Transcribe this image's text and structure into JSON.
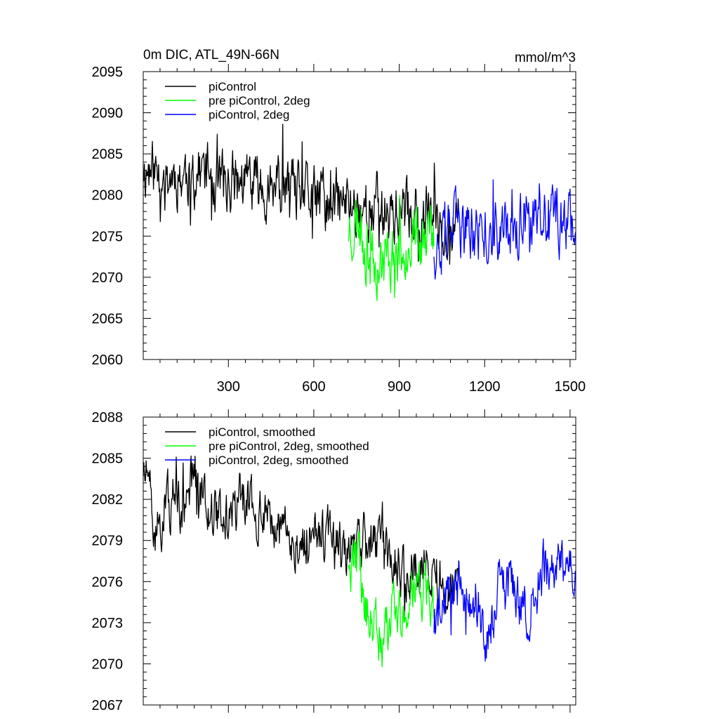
{
  "chart_data": [
    {
      "type": "line",
      "title": "0m DIC, ATL_49N-66N",
      "units": "mmol/m^3",
      "xlim": [
        1,
        1520
      ],
      "ylim": [
        2060,
        2095
      ],
      "xticks": [
        300,
        600,
        900,
        1200,
        1500
      ],
      "yticks": [
        2060,
        2065,
        2070,
        2075,
        2080,
        2085,
        2090,
        2095
      ],
      "legend_placement": "top-left",
      "series": [
        {
          "name": "piControl",
          "color": "#000000",
          "x_range": [
            1,
            1110
          ],
          "anchors": [
            [
              1,
              2083.5
            ],
            [
              60,
              2082.5
            ],
            [
              150,
              2082.5
            ],
            [
              200,
              2083
            ],
            [
              300,
              2081.5
            ],
            [
              400,
              2081.5
            ],
            [
              500,
              2080.5
            ],
            [
              600,
              2079.5
            ],
            [
              700,
              2079
            ],
            [
              800,
              2078.5
            ],
            [
              900,
              2078
            ],
            [
              1000,
              2077.5
            ],
            [
              1110,
              2076.5
            ]
          ],
          "noise_amplitude": 3.0,
          "seed": 11
        },
        {
          "name": "pre piControl, 2deg",
          "color": "#00ff00",
          "x_range": [
            722,
            1022
          ],
          "anchors": [
            [
              722,
              2076
            ],
            [
              760,
              2077
            ],
            [
              790,
              2073
            ],
            [
              840,
              2072
            ],
            [
              900,
              2073.5
            ],
            [
              960,
              2075.5
            ],
            [
              1022,
              2074.5
            ]
          ],
          "noise_amplitude": 3.2,
          "seed": 23
        },
        {
          "name": "piControl, 2deg",
          "color": "#0000ff",
          "x_range": [
            1022,
            1520
          ],
          "anchors": [
            [
              1022,
              2074
            ],
            [
              1100,
              2076
            ],
            [
              1200,
              2075
            ],
            [
              1300,
              2076
            ],
            [
              1400,
              2077
            ],
            [
              1520,
              2077
            ]
          ],
          "noise_amplitude": 3.0,
          "seed": 37
        }
      ]
    },
    {
      "type": "line",
      "xlim": [
        1,
        1520
      ],
      "ylim": [
        2067,
        2088
      ],
      "xticks": [
        300,
        600,
        900,
        1200,
        1500
      ],
      "yticks": [
        2067,
        2070,
        2073,
        2076,
        2079,
        2082,
        2085,
        2088
      ],
      "legend_placement": "top-left",
      "series": [
        {
          "name": "piControl, smoothed",
          "color": "#000000",
          "x_range": [
            1,
            1110
          ],
          "anchors": [
            [
              1,
              2084.5
            ],
            [
              20,
              2083
            ],
            [
              40,
              2079
            ],
            [
              80,
              2081.5
            ],
            [
              150,
              2082
            ],
            [
              180,
              2084
            ],
            [
              250,
              2081
            ],
            [
              300,
              2080.5
            ],
            [
              350,
              2082
            ],
            [
              450,
              2080
            ],
            [
              550,
              2078.5
            ],
            [
              600,
              2080
            ],
            [
              700,
              2078
            ],
            [
              800,
              2079
            ],
            [
              900,
              2077
            ],
            [
              1000,
              2077
            ],
            [
              1060,
              2076
            ],
            [
              1110,
              2076
            ]
          ],
          "noise_amplitude": 1.6,
          "seed": 51
        },
        {
          "name": "pre piControl, 2deg, smoothed",
          "color": "#00ff00",
          "x_range": [
            722,
            1022
          ],
          "anchors": [
            [
              722,
              2075.5
            ],
            [
              755,
              2078
            ],
            [
              780,
              2074
            ],
            [
              830,
              2072
            ],
            [
              880,
              2073
            ],
            [
              940,
              2074.5
            ],
            [
              990,
              2076
            ],
            [
              1022,
              2073.5
            ]
          ],
          "noise_amplitude": 1.7,
          "seed": 63
        },
        {
          "name": "piControl, 2deg, smoothed",
          "color": "#0000ff",
          "x_range": [
            1022,
            1520
          ],
          "anchors": [
            [
              1022,
              2073
            ],
            [
              1070,
              2075
            ],
            [
              1170,
              2075
            ],
            [
              1200,
              2071.5
            ],
            [
              1260,
              2076
            ],
            [
              1350,
              2074
            ],
            [
              1420,
              2077.5
            ],
            [
              1520,
              2076.5
            ]
          ],
          "noise_amplitude": 1.6,
          "seed": 79
        }
      ]
    }
  ]
}
